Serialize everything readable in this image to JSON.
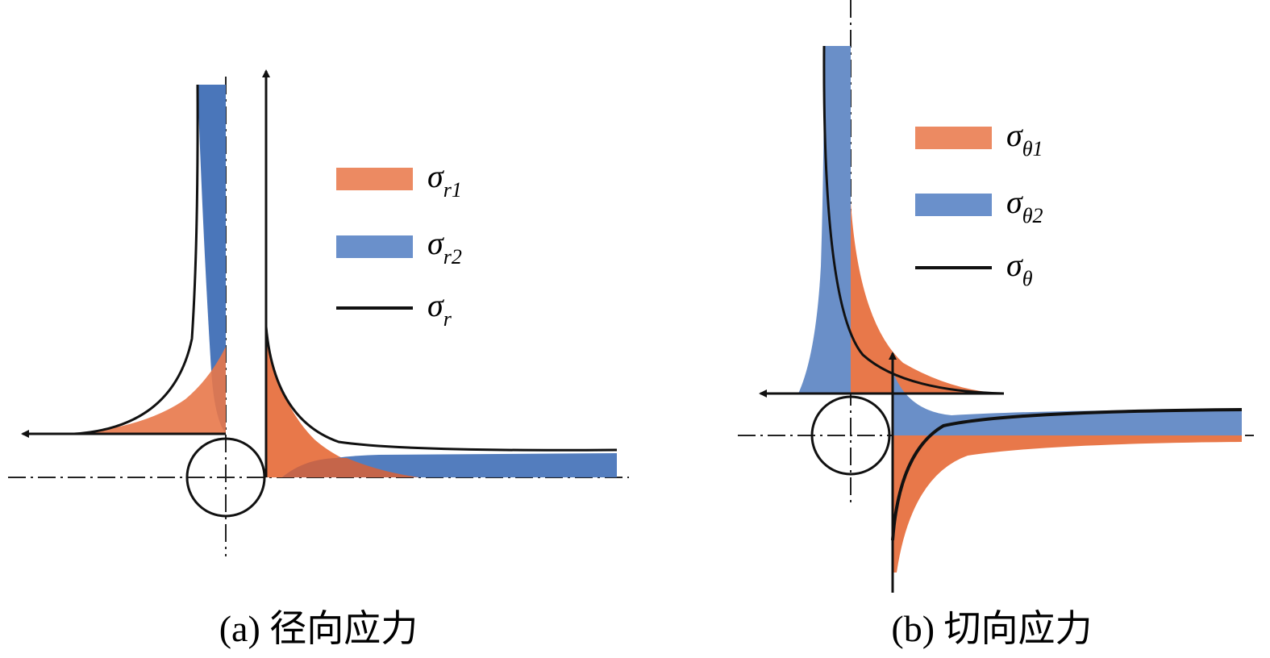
{
  "panel_a": {
    "legend": [
      {
        "symbol": "σ",
        "subscript": "r1"
      },
      {
        "symbol": "σ",
        "subscript": "r2"
      },
      {
        "symbol": "σ",
        "subscript": "r"
      }
    ],
    "caption": "(a) 径向应力"
  },
  "panel_b": {
    "legend": [
      {
        "symbol": "σ",
        "subscript": "θ1"
      },
      {
        "symbol": "σ",
        "subscript": "θ2"
      },
      {
        "symbol": "σ",
        "subscript": "θ"
      }
    ],
    "caption": "(b) 切向应力"
  }
}
